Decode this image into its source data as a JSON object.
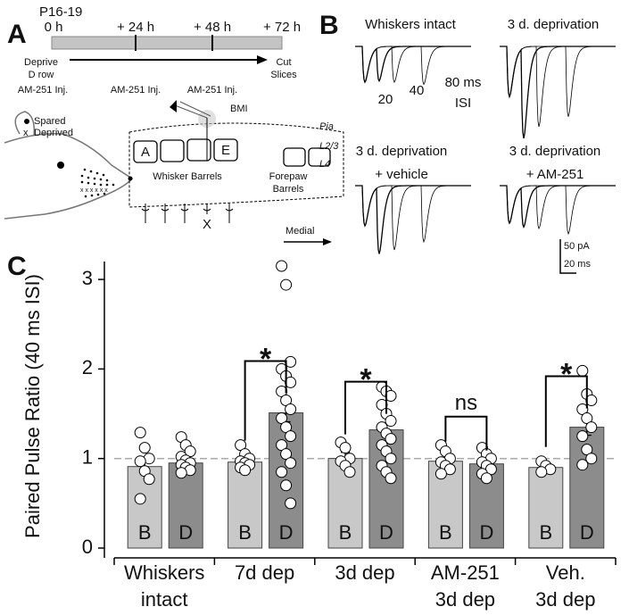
{
  "panel_a": {
    "label": "A",
    "age": "P16-19",
    "timeline": [
      "0 h",
      "+ 24 h",
      "+ 48 h",
      "+ 72 h"
    ],
    "start": [
      "Deprive",
      "D row"
    ],
    "end": [
      "Cut",
      "Slices"
    ],
    "injections": [
      "AM-251 Inj.",
      "AM-251 Inj.",
      "AM-251 Inj."
    ],
    "legend": [
      "Spared",
      "Deprived"
    ],
    "barrels": [
      "A",
      "E"
    ],
    "stimulus": "BMI",
    "whisker_barrels": "Whisker Barrels",
    "forepaw_barrels": [
      "Forepaw",
      "Barrels"
    ],
    "layers": [
      "Pia",
      "L2/3",
      "L4"
    ],
    "electrode_mark": "X",
    "direction": "Medial"
  },
  "panel_b": {
    "label": "B",
    "titles": [
      [
        "Whiskers intact"
      ],
      [
        "3 d. deprivation"
      ],
      [
        "3 d. deprivation",
        "+ vehicle"
      ],
      [
        "3 d. deprivation",
        "+ AM-251"
      ]
    ],
    "isi_labels": [
      "20",
      "40",
      "80 ms",
      "ISI"
    ],
    "scale": [
      "50 pA",
      "20 ms"
    ]
  },
  "chart_data": {
    "type": "bar",
    "label": "C",
    "y_label": "Paired Pulse Ratio (40 ms ISI)",
    "categories": [
      [
        "Whiskers",
        "intact"
      ],
      [
        "7d dep"
      ],
      [
        "3d dep"
      ],
      [
        "AM-251",
        "3d dep"
      ],
      [
        "Veh.",
        "3d dep"
      ]
    ],
    "ylim": [
      0,
      3.2
    ],
    "yticks": [
      0,
      1,
      2,
      3
    ],
    "reference_line": 1,
    "series": [
      {
        "name": "B",
        "color": "#c8c8c8",
        "values": [
          0.91,
          0.96,
          1.0,
          0.97,
          0.9
        ],
        "errors": [
          0.07,
          0.04,
          0.07,
          0.02,
          0.03
        ],
        "points": [
          [
            1.29,
            1.12,
            1.0,
            0.97,
            0.86,
            0.77,
            0.55
          ],
          [
            1.15,
            1.05,
            1.0,
            0.97,
            0.95,
            0.93,
            0.9,
            0.87
          ],
          [
            1.18,
            1.12,
            1.0,
            0.97,
            0.92,
            0.85
          ],
          [
            1.15,
            1.08,
            1.0,
            0.96,
            0.92,
            0.88,
            0.83
          ],
          [
            0.97,
            0.92,
            0.88,
            0.85
          ]
        ]
      },
      {
        "name": "D",
        "color": "#8c8c8c",
        "values": [
          0.95,
          1.51,
          1.32,
          0.94,
          1.35
        ],
        "errors": [
          0.03,
          0.1,
          0.06,
          0.03,
          0.09
        ],
        "points": [
          [
            1.24,
            1.15,
            1.08,
            1.02,
            0.98,
            0.95,
            0.93,
            0.9,
            0.87,
            0.84
          ],
          [
            3.15,
            2.94,
            2.08,
            2.0,
            1.92,
            1.85,
            1.75,
            1.65,
            1.55,
            1.45,
            1.35,
            1.25,
            1.15,
            1.05,
            0.95,
            0.85,
            0.7,
            0.5
          ],
          [
            1.8,
            1.75,
            1.7,
            1.6,
            1.5,
            1.42,
            1.35,
            1.28,
            1.22,
            1.15,
            1.08,
            1.0,
            0.92,
            0.85,
            0.78
          ],
          [
            1.12,
            1.05,
            1.0,
            0.96,
            0.92,
            0.88,
            0.83,
            0.78
          ],
          [
            1.98,
            1.72,
            1.65,
            1.55,
            1.45,
            1.35,
            1.25,
            1.1,
            1.0,
            0.93
          ]
        ]
      }
    ],
    "significance": [
      null,
      "*",
      "*",
      "ns",
      "*"
    ]
  }
}
